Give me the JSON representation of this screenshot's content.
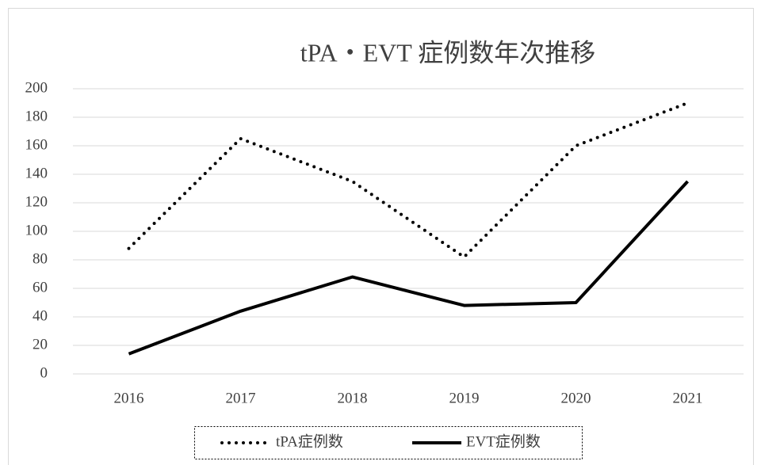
{
  "chart_data": {
    "type": "line",
    "title": "tPA・EVT 症例数年次推移",
    "categories": [
      "2016",
      "2017",
      "2018",
      "2019",
      "2020",
      "2021"
    ],
    "series": [
      {
        "name": "tPA症例数",
        "color": "#000000",
        "dash": "dotted",
        "values": [
          88,
          165,
          135,
          82,
          160,
          190
        ]
      },
      {
        "name": "EVT症例数",
        "color": "#000000",
        "dash": "solid",
        "values": [
          14,
          44,
          68,
          48,
          50,
          135
        ]
      }
    ],
    "ylim": [
      0,
      200
    ],
    "yticks": [
      0,
      20,
      40,
      60,
      80,
      100,
      120,
      140,
      160,
      180,
      200
    ],
    "grid": true,
    "legend": "bottom"
  }
}
